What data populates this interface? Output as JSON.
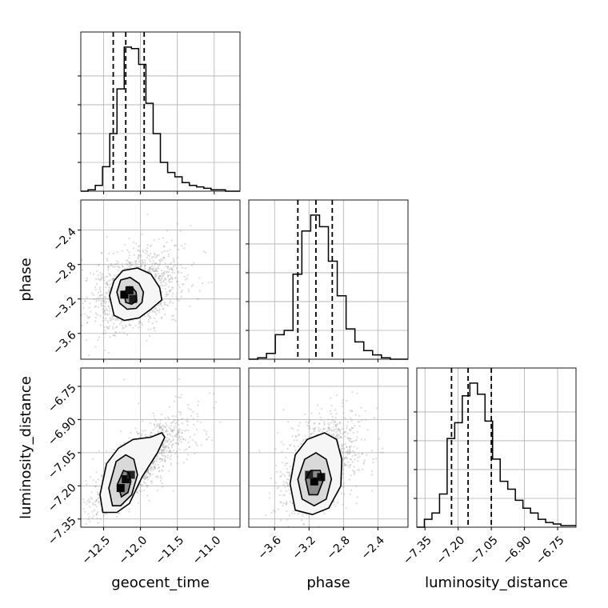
{
  "chart_data": {
    "type": "corner",
    "parameters": [
      "geocent_time",
      "phase",
      "luminosity_distance"
    ],
    "axis_labels": {
      "geocent_time": "geocent_time",
      "phase": "phase",
      "luminosity_distance": "luminosity_distance"
    },
    "ticks": {
      "geocent_time": [
        -12.5,
        -12.0,
        -11.5,
        -11.0
      ],
      "phase": [
        -3.6,
        -3.2,
        -2.8,
        -2.4
      ],
      "luminosity_distance": [
        -7.35,
        -7.2,
        -7.05,
        -6.9,
        -6.75
      ]
    },
    "tick_labels": {
      "geocent_time": [
        "−12.5",
        "−12.0",
        "−11.5",
        "−11.0"
      ],
      "phase": [
        "−3.6",
        "−3.2",
        "−2.8",
        "−2.4"
      ],
      "luminosity_distance": [
        "−7.35",
        "−7.20",
        "−7.05",
        "−6.90",
        "−6.75"
      ]
    },
    "ranges": {
      "geocent_time": [
        -12.81,
        -10.65
      ],
      "phase": [
        -3.9,
        -2.05
      ],
      "luminosity_distance": [
        -7.387,
        -6.667
      ]
    },
    "quantiles": {
      "geocent_time": [
        -12.37,
        -12.2,
        -11.95
      ],
      "phase": [
        -3.33,
        -3.12,
        -2.93
      ],
      "luminosity_distance": [
        -7.23,
        -7.155,
        -7.05
      ]
    },
    "histograms": {
      "geocent_time": [
        0,
        1,
        4,
        17,
        40,
        71,
        100,
        99,
        88,
        61,
        40,
        20,
        13,
        10,
        6,
        4,
        3,
        2,
        1,
        1,
        0,
        0
      ],
      "phase": [
        0,
        1,
        4,
        17,
        20,
        59,
        89,
        100,
        92,
        68,
        44,
        21,
        12,
        6,
        3,
        1,
        0,
        0
      ],
      "luminosity_distance": [
        0,
        5,
        9,
        21,
        56,
        66,
        83,
        91,
        84,
        67,
        43,
        29,
        24,
        17,
        12,
        9,
        5,
        3,
        2,
        1,
        1
      ]
    },
    "contours": {
      "geocent_time__phase": [
        [
          [
            -12.22,
            -3.15
          ],
          [
            -12.18,
            -3.06
          ],
          [
            -12.12,
            -3.06
          ],
          [
            -12.06,
            -3.12
          ],
          [
            -12.05,
            -3.22
          ],
          [
            -12.12,
            -3.26
          ],
          [
            -12.2,
            -3.24
          ]
        ],
        [
          [
            -12.32,
            -3.12
          ],
          [
            -12.27,
            -2.98
          ],
          [
            -12.14,
            -2.95
          ],
          [
            -12.02,
            -3.02
          ],
          [
            -11.96,
            -3.12
          ],
          [
            -11.98,
            -3.24
          ],
          [
            -12.06,
            -3.31
          ],
          [
            -12.18,
            -3.32
          ],
          [
            -12.28,
            -3.25
          ]
        ],
        [
          [
            -12.42,
            -3.16
          ],
          [
            -12.36,
            -2.99
          ],
          [
            -12.24,
            -2.87
          ],
          [
            -12.04,
            -2.84
          ],
          [
            -11.86,
            -2.91
          ],
          [
            -11.74,
            -3.07
          ],
          [
            -11.71,
            -3.21
          ],
          [
            -11.86,
            -3.32
          ],
          [
            -12.02,
            -3.42
          ],
          [
            -12.22,
            -3.45
          ],
          [
            -12.36,
            -3.39
          ]
        ]
      ],
      "geocent_time__luminosity_distance": [
        [
          [
            -12.31,
            -7.19
          ],
          [
            -12.23,
            -7.13
          ],
          [
            -12.16,
            -7.14
          ],
          [
            -12.13,
            -7.18
          ],
          [
            -12.17,
            -7.23
          ],
          [
            -12.26,
            -7.25
          ]
        ],
        [
          [
            -12.43,
            -7.21
          ],
          [
            -12.33,
            -7.09
          ],
          [
            -12.2,
            -7.06
          ],
          [
            -12.09,
            -7.08
          ],
          [
            -12.04,
            -7.15
          ],
          [
            -12.12,
            -7.24
          ],
          [
            -12.27,
            -7.29
          ],
          [
            -12.38,
            -7.29
          ]
        ],
        [
          [
            -12.55,
            -7.24
          ],
          [
            -12.46,
            -7.1
          ],
          [
            -12.3,
            -7.03
          ],
          [
            -12.1,
            -6.99
          ],
          [
            -11.86,
            -6.98
          ],
          [
            -11.71,
            -6.96
          ],
          [
            -11.67,
            -6.98
          ],
          [
            -11.77,
            -7.05
          ],
          [
            -11.98,
            -7.16
          ],
          [
            -12.15,
            -7.28
          ],
          [
            -12.32,
            -7.32
          ],
          [
            -12.51,
            -7.32
          ]
        ]
      ],
      "phase__luminosity_distance": [
        [
          [
            -3.24,
            -7.17
          ],
          [
            -3.18,
            -7.13
          ],
          [
            -3.07,
            -7.13
          ],
          [
            -3.04,
            -7.18
          ],
          [
            -3.1,
            -7.24
          ],
          [
            -3.2,
            -7.24
          ]
        ],
        [
          [
            -3.33,
            -7.17
          ],
          [
            -3.25,
            -7.08
          ],
          [
            -3.12,
            -7.05
          ],
          [
            -3.0,
            -7.08
          ],
          [
            -2.94,
            -7.17
          ],
          [
            -3.0,
            -7.26
          ],
          [
            -3.14,
            -7.29
          ],
          [
            -3.28,
            -7.26
          ]
        ],
        [
          [
            -3.42,
            -7.19
          ],
          [
            -3.36,
            -7.06
          ],
          [
            -3.22,
            -6.99
          ],
          [
            -3.02,
            -6.96
          ],
          [
            -2.88,
            -6.99
          ],
          [
            -2.82,
            -7.08
          ],
          [
            -2.83,
            -7.2
          ],
          [
            -2.97,
            -7.3
          ],
          [
            -3.16,
            -7.33
          ],
          [
            -3.36,
            -7.31
          ]
        ]
      ]
    },
    "density_peaks": {
      "geocent_time__phase": [
        {
          "x": -12.22,
          "y": -3.15,
          "w": 1.0
        },
        {
          "x": -12.15,
          "y": -3.1,
          "w": 0.85
        },
        {
          "x": -12.1,
          "y": -3.2,
          "w": 0.7
        }
      ],
      "geocent_time__luminosity_distance": [
        {
          "x": -12.27,
          "y": -7.21,
          "w": 1.0
        },
        {
          "x": -12.2,
          "y": -7.17,
          "w": 0.9
        },
        {
          "x": -12.13,
          "y": -7.15,
          "w": 0.6
        }
      ],
      "phase__luminosity_distance": [
        {
          "x": -3.14,
          "y": -7.18,
          "w": 1.0
        },
        {
          "x": -3.06,
          "y": -7.16,
          "w": 0.85
        },
        {
          "x": -3.2,
          "y": -7.15,
          "w": 0.6
        }
      ]
    },
    "scatter_spread": {
      "geocent_time__phase": {
        "mx": -12.1,
        "my": -3.12,
        "sx": 0.28,
        "sy": 0.22,
        "rho": 0.25
      },
      "geocent_time__luminosity_distance": {
        "mx": -12.05,
        "my": -7.12,
        "sx": 0.3,
        "sy": 0.1,
        "rho": 0.82
      },
      "phase__luminosity_distance": {
        "mx": -3.1,
        "my": -7.12,
        "sx": 0.2,
        "sy": 0.1,
        "rho": 0.35
      }
    },
    "grid": true
  }
}
